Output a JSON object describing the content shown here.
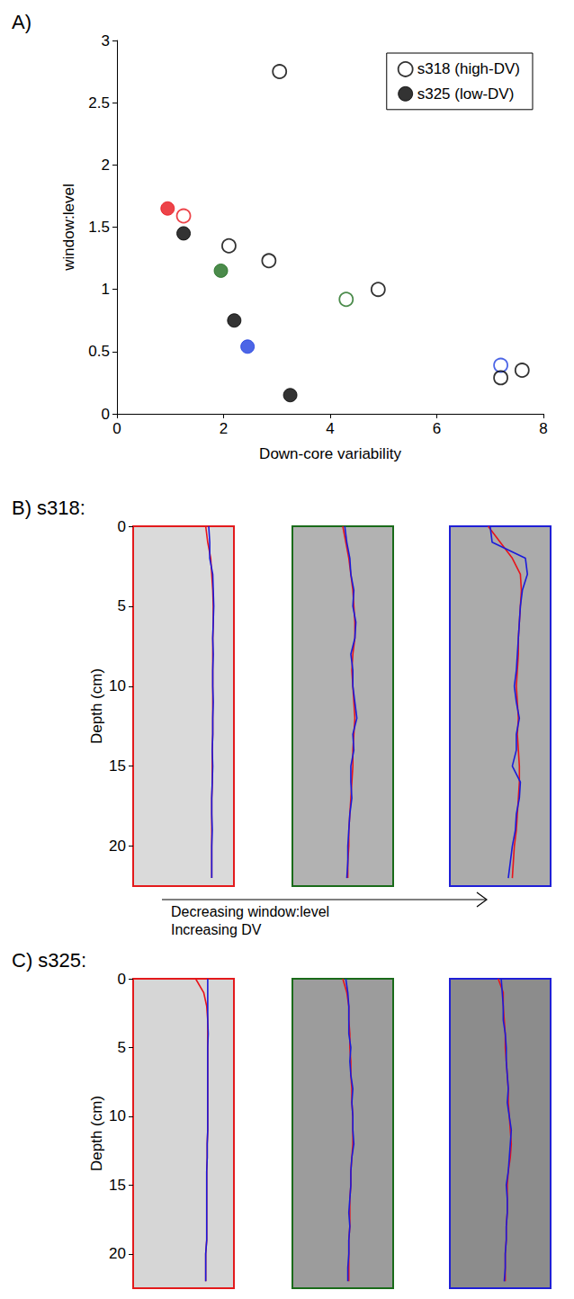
{
  "chart_data": [
    {
      "type": "scatter",
      "title": "A)",
      "xlabel": "Down-core variability",
      "ylabel": "window:level",
      "xlim": [
        0,
        8
      ],
      "xticks": [
        0,
        2,
        4,
        6,
        8
      ],
      "ylim": [
        0,
        3
      ],
      "yticks": [
        0,
        0.5,
        1,
        1.5,
        2,
        2.5,
        3
      ],
      "grid": false,
      "legend": "top-right",
      "series": [
        {
          "name": "s318 (high-DV)",
          "marker": "open",
          "color": "#000000",
          "colors": [
            "#000000",
            "#e8141b",
            "#000000",
            "#000000",
            "#1e6e1e",
            "#000000",
            "#1f3fe0",
            "#000000",
            "#000000"
          ],
          "x": [
            3.05,
            1.25,
            2.1,
            2.85,
            4.3,
            4.9,
            7.2,
            7.2,
            7.6
          ],
          "values": [
            2.75,
            1.59,
            1.35,
            1.23,
            0.92,
            1.0,
            0.39,
            0.29,
            0.35
          ]
        },
        {
          "name": "s325 (low-DV)",
          "marker": "filled",
          "color": "#000000",
          "colors": [
            "#e8141b",
            "#000000",
            "#1e6e1e",
            "#000000",
            "#1f3fe0",
            "#000000"
          ],
          "x": [
            0.95,
            1.25,
            1.95,
            2.2,
            2.45,
            3.25
          ],
          "values": [
            1.65,
            1.45,
            1.15,
            0.75,
            0.54,
            0.15
          ]
        }
      ]
    },
    {
      "type": "line",
      "title": "B) s318:",
      "ylabel": "Depth (cm)",
      "color": "#e31a1c",
      "xlim": [
        0,
        1
      ],
      "ylim": [
        0,
        22.5
      ],
      "yticks": [
        0,
        5,
        10,
        15,
        20
      ],
      "tick_labels": "y",
      "y": [
        0,
        1,
        2,
        3,
        4,
        5,
        6,
        7,
        8,
        9,
        10,
        11,
        12,
        13,
        14,
        15,
        16,
        17,
        18,
        19,
        20,
        21,
        22
      ],
      "series": [
        {
          "color": "#e8141b",
          "values": [
            0.72,
            0.74,
            0.77,
            0.78,
            0.79,
            0.795,
            0.795,
            0.79,
            0.79,
            0.79,
            0.79,
            0.79,
            0.79,
            0.79,
            0.785,
            0.785,
            0.785,
            0.78,
            0.78,
            0.78,
            0.78,
            0.78,
            0.78
          ]
        },
        {
          "color": "#1a1adb",
          "values": [
            0.75,
            0.76,
            0.76,
            0.79,
            0.795,
            0.8,
            0.795,
            0.79,
            0.795,
            0.79,
            0.79,
            0.795,
            0.79,
            0.79,
            0.785,
            0.79,
            0.785,
            0.78,
            0.78,
            0.785,
            0.78,
            0.78,
            0.78
          ]
        }
      ]
    },
    {
      "type": "line",
      "color": "#1a6b1a",
      "xlim": [
        0,
        1
      ],
      "ylim": [
        0,
        22.5
      ],
      "tick_labels": false,
      "y": [
        0,
        1,
        2,
        3,
        4,
        5,
        6,
        7,
        8,
        9,
        10,
        11,
        12,
        13,
        14,
        15,
        16,
        17,
        18,
        19,
        20,
        21,
        22
      ],
      "series": [
        {
          "color": "#e8141b",
          "values": [
            0.5,
            0.53,
            0.56,
            0.58,
            0.6,
            0.61,
            0.62,
            0.62,
            0.6,
            0.59,
            0.6,
            0.61,
            0.62,
            0.61,
            0.6,
            0.6,
            0.59,
            0.58,
            0.57,
            0.56,
            0.56,
            0.55,
            0.55
          ]
        },
        {
          "color": "#1a1adb",
          "values": [
            0.52,
            0.54,
            0.57,
            0.58,
            0.61,
            0.6,
            0.63,
            0.62,
            0.58,
            0.6,
            0.6,
            0.62,
            0.64,
            0.6,
            0.61,
            0.58,
            0.58,
            0.59,
            0.57,
            0.56,
            0.55,
            0.55,
            0.54
          ]
        }
      ]
    },
    {
      "type": "line",
      "color": "#1f1fd6",
      "xlim": [
        0,
        1
      ],
      "ylim": [
        0,
        22.5
      ],
      "tick_labels": false,
      "y": [
        0,
        1,
        2,
        3,
        4,
        5,
        6,
        7,
        8,
        9,
        10,
        11,
        12,
        13,
        14,
        15,
        16,
        17,
        18,
        19,
        20,
        21,
        22
      ],
      "series": [
        {
          "color": "#e8141b",
          "values": [
            0.38,
            0.5,
            0.62,
            0.7,
            0.71,
            0.7,
            0.69,
            0.68,
            0.68,
            0.67,
            0.66,
            0.67,
            0.68,
            0.67,
            0.68,
            0.69,
            0.69,
            0.68,
            0.67,
            0.66,
            0.64,
            0.63,
            0.62
          ]
        },
        {
          "color": "#1a1adb",
          "values": [
            0.4,
            0.42,
            0.75,
            0.77,
            0.72,
            0.7,
            0.69,
            0.68,
            0.67,
            0.66,
            0.64,
            0.66,
            0.69,
            0.66,
            0.66,
            0.62,
            0.7,
            0.69,
            0.66,
            0.65,
            0.62,
            0.6,
            0.58
          ]
        }
      ]
    },
    {
      "type": "line",
      "title": "C) s325:",
      "ylabel": "Depth (cm)",
      "color": "#e31a1c",
      "xlim": [
        0,
        1
      ],
      "ylim": [
        0,
        22.5
      ],
      "yticks": [
        0,
        5,
        10,
        15,
        20
      ],
      "tick_labels": "y",
      "y": [
        0,
        1,
        2,
        3,
        4,
        5,
        6,
        7,
        8,
        9,
        10,
        11,
        12,
        13,
        14,
        15,
        16,
        17,
        18,
        19,
        20,
        21,
        22
      ],
      "series": [
        {
          "color": "#e8141b",
          "values": [
            0.62,
            0.7,
            0.73,
            0.74,
            0.74,
            0.74,
            0.74,
            0.74,
            0.74,
            0.74,
            0.74,
            0.74,
            0.735,
            0.735,
            0.73,
            0.73,
            0.73,
            0.73,
            0.73,
            0.73,
            0.72,
            0.72,
            0.72
          ]
        },
        {
          "color": "#1a1adb",
          "values": [
            0.74,
            0.74,
            0.74,
            0.74,
            0.745,
            0.74,
            0.74,
            0.74,
            0.74,
            0.74,
            0.74,
            0.74,
            0.735,
            0.735,
            0.73,
            0.73,
            0.73,
            0.73,
            0.73,
            0.73,
            0.72,
            0.72,
            0.72
          ]
        }
      ]
    },
    {
      "type": "line",
      "color": "#1a6b1a",
      "xlim": [
        0,
        1
      ],
      "ylim": [
        0,
        22.5
      ],
      "tick_labels": false,
      "y": [
        0,
        1,
        2,
        3,
        4,
        5,
        6,
        7,
        8,
        9,
        10,
        11,
        12,
        13,
        14,
        15,
        16,
        17,
        18,
        19,
        20,
        21,
        22
      ],
      "series": [
        {
          "color": "#e8141b",
          "values": [
            0.5,
            0.54,
            0.56,
            0.56,
            0.57,
            0.57,
            0.58,
            0.58,
            0.59,
            0.59,
            0.6,
            0.6,
            0.6,
            0.59,
            0.58,
            0.58,
            0.57,
            0.57,
            0.57,
            0.56,
            0.56,
            0.56,
            0.56
          ]
        },
        {
          "color": "#1a1adb",
          "values": [
            0.53,
            0.55,
            0.56,
            0.56,
            0.56,
            0.58,
            0.57,
            0.58,
            0.6,
            0.59,
            0.6,
            0.6,
            0.61,
            0.59,
            0.58,
            0.58,
            0.57,
            0.56,
            0.57,
            0.56,
            0.56,
            0.55,
            0.55
          ]
        }
      ]
    },
    {
      "type": "line",
      "color": "#1f1fd6",
      "xlim": [
        0,
        1
      ],
      "ylim": [
        0,
        22.5
      ],
      "tick_labels": false,
      "y": [
        0,
        1,
        2,
        3,
        4,
        5,
        6,
        7,
        8,
        9,
        10,
        11,
        12,
        13,
        14,
        15,
        16,
        17,
        18,
        19,
        20,
        21,
        22
      ],
      "series": [
        {
          "color": "#e8141b",
          "values": [
            0.48,
            0.53,
            0.53,
            0.54,
            0.55,
            0.55,
            0.56,
            0.57,
            0.58,
            0.58,
            0.59,
            0.6,
            0.61,
            0.6,
            0.58,
            0.57,
            0.57,
            0.57,
            0.56,
            0.56,
            0.55,
            0.55,
            0.55
          ]
        },
        {
          "color": "#1a1adb",
          "values": [
            0.51,
            0.52,
            0.53,
            0.53,
            0.55,
            0.56,
            0.56,
            0.57,
            0.58,
            0.57,
            0.59,
            0.61,
            0.6,
            0.59,
            0.58,
            0.56,
            0.57,
            0.57,
            0.56,
            0.56,
            0.55,
            0.55,
            0.54
          ]
        }
      ]
    }
  ],
  "annotations": [
    "Decreasing window:level",
    "Increasing DV"
  ]
}
